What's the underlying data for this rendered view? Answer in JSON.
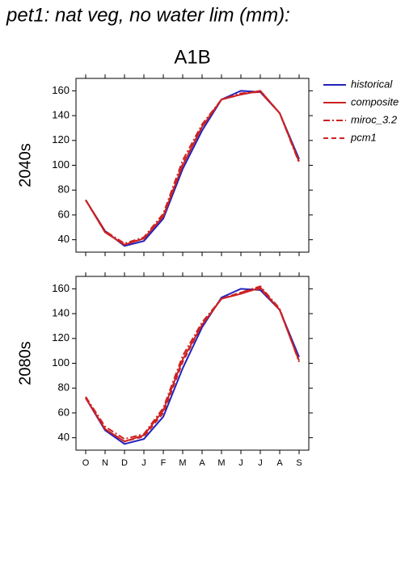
{
  "title": "pet1: nat veg, no water lim (mm):",
  "column_title": "A1B",
  "chart_data": [
    {
      "type": "line",
      "row_label": "2040s",
      "ylim": [
        30,
        170
      ],
      "yticks": [
        40,
        60,
        80,
        100,
        120,
        140,
        160
      ],
      "series": [
        {
          "name": "historical",
          "color": "#2222bb",
          "dash": "none",
          "values": [
            72,
            47,
            35,
            39,
            57,
            97,
            128,
            153,
            160,
            159,
            142,
            105
          ]
        },
        {
          "name": "composite",
          "color": "#cc2222",
          "dash": "none",
          "values": [
            72,
            46,
            36,
            41,
            59,
            100,
            131,
            153,
            157,
            160,
            142,
            103
          ]
        },
        {
          "name": "miroc_3.2",
          "color": "#cc2222",
          "dash": "8,3,2,3",
          "values": [
            72,
            47,
            37,
            42,
            61,
            104,
            133,
            153,
            158,
            159,
            142,
            102
          ]
        },
        {
          "name": "pcm1",
          "color": "#cc2222",
          "dash": "6,4",
          "values": [
            72,
            46,
            36,
            41,
            59,
            101,
            131,
            153,
            157,
            160,
            142,
            103
          ]
        }
      ]
    },
    {
      "type": "line",
      "row_label": "2080s",
      "categories": [
        "O",
        "N",
        "D",
        "J",
        "F",
        "M",
        "A",
        "M",
        "J",
        "J",
        "A",
        "S"
      ],
      "ylim": [
        30,
        170
      ],
      "yticks": [
        40,
        60,
        80,
        100,
        120,
        140,
        160
      ],
      "series": [
        {
          "name": "historical",
          "color": "#2222bb",
          "dash": "none",
          "values": [
            72,
            46,
            35,
            39,
            57,
            96,
            129,
            153,
            160,
            159,
            143,
            105
          ]
        },
        {
          "name": "composite",
          "color": "#cc2222",
          "dash": "none",
          "values": [
            72,
            47,
            37,
            42,
            62,
            103,
            131,
            152,
            156,
            161,
            143,
            102
          ]
        },
        {
          "name": "miroc_3.2",
          "color": "#cc2222",
          "dash": "8,3,2,3",
          "values": [
            73,
            49,
            39,
            43,
            64,
            106,
            133,
            152,
            157,
            162,
            144,
            101
          ]
        },
        {
          "name": "pcm1",
          "color": "#cc2222",
          "dash": "6,4",
          "values": [
            72,
            47,
            37,
            41,
            60,
            101,
            131,
            152,
            157,
            160,
            143,
            102
          ]
        }
      ]
    }
  ]
}
